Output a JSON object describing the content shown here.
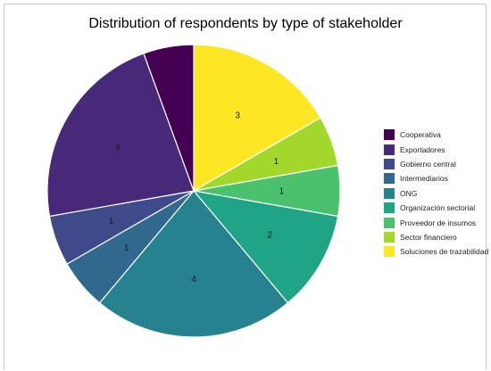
{
  "chart_data": {
    "type": "pie",
    "title": "Distribution of respondents by type of stakeholder",
    "categories": [
      "Cooperativa",
      "Exportadores",
      "Gobierno central",
      "Intermediarios",
      "ONG",
      "Organización sectorial",
      "Proveedor de insumos",
      "Sector financiero",
      "Soluciones de trazabilidad"
    ],
    "values": [
      1,
      4,
      1,
      1,
      4,
      2,
      1,
      1,
      3
    ],
    "colors": [
      "#440154",
      "#482878",
      "#3e4a89",
      "#31688e",
      "#26828e",
      "#20a486",
      "#4ac16d",
      "#a2d82c",
      "#fde725"
    ],
    "start": "12 o'clock",
    "direction": "counterclockwise from Soluciones de trazabilidad",
    "slice_edges": "white",
    "legend_position": "right"
  }
}
